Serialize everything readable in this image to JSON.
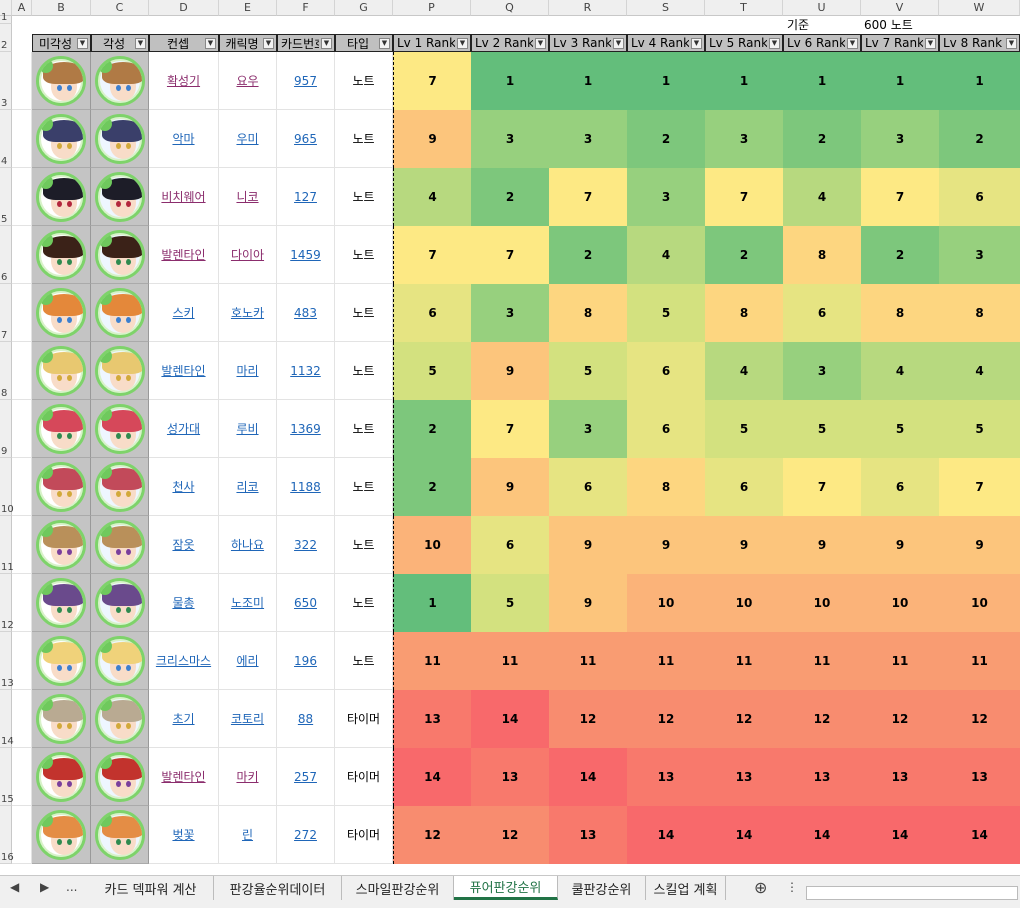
{
  "sheet": {
    "col_letters": [
      "A",
      "B",
      "C",
      "D",
      "E",
      "F",
      "G",
      "P",
      "Q",
      "R",
      "S",
      "T",
      "U",
      "V",
      "W"
    ],
    "row_numbers": [
      "1",
      "2",
      "3",
      "4",
      "5",
      "6",
      "7",
      "8",
      "9",
      "10",
      "11",
      "12",
      "13",
      "14",
      "15",
      "16"
    ],
    "criteria_label": "기준",
    "criteria_value": "600 노트",
    "headers": {
      "unawakened": "미각성",
      "awakened": "각성",
      "concept": "컨셉",
      "character": "캐릭명",
      "card_no": "카드번호",
      "type": "타입",
      "ranks": [
        "Lv 1 Rank",
        "Lv 2 Rank",
        "Lv 3 Rank",
        "Lv 4 Rank",
        "Lv 5 Rank",
        "Lv 6 Rank",
        "Lv 7 Rank",
        "Lv 8 Rank"
      ]
    },
    "rows": [
      {
        "concept": "확성기",
        "character": "요우",
        "card_no": "957",
        "type": "노트",
        "ranks": [
          "7",
          "1",
          "1",
          "1",
          "1",
          "1",
          "1",
          "1"
        ],
        "concept_visited": true,
        "char_visited": true,
        "hair": "#b07a45",
        "eye": "#3c7fcf"
      },
      {
        "concept": "악마",
        "character": "우미",
        "card_no": "965",
        "type": "노트",
        "ranks": [
          "9",
          "3",
          "3",
          "2",
          "3",
          "2",
          "3",
          "2"
        ],
        "concept_visited": false,
        "char_visited": false,
        "hair": "#3a3f6a",
        "eye": "#d2a93a"
      },
      {
        "concept": "비치웨어",
        "character": "니코",
        "card_no": "127",
        "type": "노트",
        "ranks": [
          "4",
          "2",
          "7",
          "3",
          "7",
          "4",
          "7",
          "6"
        ],
        "concept_visited": true,
        "char_visited": true,
        "hair": "#1d1d28",
        "eye": "#b3263d"
      },
      {
        "concept": "발렌타인",
        "character": "다이아",
        "card_no": "1459",
        "type": "노트",
        "ranks": [
          "7",
          "7",
          "2",
          "4",
          "2",
          "8",
          "2",
          "3"
        ],
        "concept_visited": true,
        "char_visited": true,
        "hair": "#3b2218",
        "eye": "#2f8a4f"
      },
      {
        "concept": "스키",
        "character": "호노카",
        "card_no": "483",
        "type": "노트",
        "ranks": [
          "6",
          "3",
          "8",
          "5",
          "8",
          "6",
          "8",
          "8"
        ],
        "concept_visited": false,
        "char_visited": false,
        "hair": "#e4883a",
        "eye": "#3c7fcf"
      },
      {
        "concept": "발렌타인",
        "character": "마리",
        "card_no": "1132",
        "type": "노트",
        "ranks": [
          "5",
          "9",
          "5",
          "6",
          "4",
          "3",
          "4",
          "4"
        ],
        "concept_visited": false,
        "char_visited": false,
        "hair": "#e8c870",
        "eye": "#d2a93a"
      },
      {
        "concept": "성가대",
        "character": "루비",
        "card_no": "1369",
        "type": "노트",
        "ranks": [
          "2",
          "7",
          "3",
          "6",
          "5",
          "5",
          "5",
          "5"
        ],
        "concept_visited": false,
        "char_visited": false,
        "hair": "#d6485a",
        "eye": "#2f8a4f"
      },
      {
        "concept": "천사",
        "character": "리코",
        "card_no": "1188",
        "type": "노트",
        "ranks": [
          "2",
          "9",
          "6",
          "8",
          "6",
          "7",
          "6",
          "7"
        ],
        "concept_visited": false,
        "char_visited": false,
        "hair": "#c24a5a",
        "eye": "#d2a93a"
      },
      {
        "concept": "잠옷",
        "character": "하나요",
        "card_no": "322",
        "type": "노트",
        "ranks": [
          "10",
          "6",
          "9",
          "9",
          "9",
          "9",
          "9",
          "9"
        ],
        "concept_visited": false,
        "char_visited": false,
        "hair": "#b9905a",
        "eye": "#7a3f9c"
      },
      {
        "concept": "물총",
        "character": "노조미",
        "card_no": "650",
        "type": "노트",
        "ranks": [
          "1",
          "5",
          "9",
          "10",
          "10",
          "10",
          "10",
          "10"
        ],
        "concept_visited": false,
        "char_visited": false,
        "hair": "#6a4a8c",
        "eye": "#2f8a4f"
      },
      {
        "concept": "크리스마스",
        "character": "에리",
        "card_no": "196",
        "type": "노트",
        "ranks": [
          "11",
          "11",
          "11",
          "11",
          "11",
          "11",
          "11",
          "11"
        ],
        "concept_visited": false,
        "char_visited": false,
        "hair": "#f0d27a",
        "eye": "#3c7fcf"
      },
      {
        "concept": "초기",
        "character": "코토리",
        "card_no": "88",
        "type": "타이머",
        "ranks": [
          "13",
          "14",
          "12",
          "12",
          "12",
          "12",
          "12",
          "12"
        ],
        "concept_visited": false,
        "char_visited": false,
        "hair": "#b9aa92",
        "eye": "#d2a93a"
      },
      {
        "concept": "발렌타인",
        "character": "마키",
        "card_no": "257",
        "type": "타이머",
        "ranks": [
          "14",
          "13",
          "14",
          "13",
          "13",
          "13",
          "13",
          "13"
        ],
        "concept_visited": true,
        "char_visited": true,
        "hair": "#c2332d",
        "eye": "#7a3f9c"
      },
      {
        "concept": "벚꽃",
        "character": "린",
        "card_no": "272",
        "type": "타이머",
        "ranks": [
          "12",
          "12",
          "13",
          "14",
          "14",
          "14",
          "14",
          "14"
        ],
        "concept_visited": false,
        "char_visited": false,
        "hair": "#e48d45",
        "eye": "#2f8a4f"
      }
    ],
    "rank_colors": {
      "1": "#63be7b",
      "2": "#7dc77c",
      "3": "#97d07e",
      "4": "#b7d97f",
      "5": "#d3e17f",
      "6": "#e6e482",
      "7": "#fde984",
      "8": "#fdd680",
      "9": "#fcc57c",
      "10": "#fbb379",
      "11": "#f99c72",
      "12": "#f88c6f",
      "13": "#f8796c",
      "14": "#f8696b"
    }
  },
  "tabs": {
    "nav_prev": "◀",
    "nav_next": "▶",
    "more": "...",
    "items": [
      "카드 덱파워 계산",
      "판강율순위데이터",
      "스마일판강순위",
      "퓨어판강순위",
      "쿨판강순위",
      "스킬업 계획"
    ],
    "active_index": 3,
    "add": "⊕",
    "menu": "⋮"
  }
}
